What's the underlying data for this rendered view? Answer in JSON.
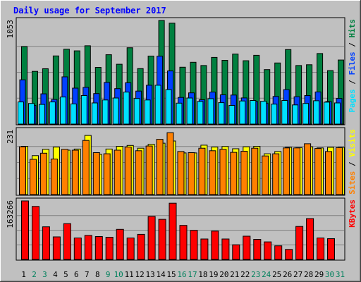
{
  "chart_data": {
    "type": "bar",
    "title": "Daily usage for September 2017",
    "categories": [
      "1",
      "2",
      "3",
      "4",
      "5",
      "6",
      "7",
      "8",
      "9",
      "10",
      "11",
      "12",
      "13",
      "14",
      "15",
      "16",
      "17",
      "18",
      "19",
      "20",
      "21",
      "22",
      "23",
      "24",
      "25",
      "26",
      "27",
      "28",
      "29",
      "30",
      "31"
    ],
    "weekend_days": [
      "2",
      "3",
      "9",
      "10",
      "16",
      "17",
      "23",
      "24",
      "30",
      "31"
    ],
    "panels": [
      {
        "id": "hits-files-pages",
        "ymax": 1053,
        "ymax_label": "1053",
        "axis_label": "Pages / Files / Hits",
        "series": [
          {
            "name": "Hits",
            "color": "#008040",
            "values": [
              788,
              536,
              562,
              693,
              761,
              744,
              796,
              577,
              705,
              608,
              776,
              564,
              691,
              1053,
              1025,
              578,
              628,
              595,
              678,
              648,
              711,
              644,
              699,
              554,
              621,
              757,
              595,
              603,
              717,
              544,
              651
            ]
          },
          {
            "name": "Files",
            "color": "#0040ff",
            "values": [
              450,
              190,
              307,
              250,
              480,
              365,
              373,
              310,
              423,
              360,
              420,
              335,
              395,
              690,
              540,
              271,
              317,
              247,
              325,
              297,
              295,
              266,
              230,
              212,
              281,
              350,
              278,
              290,
              327,
              229,
              261
            ]
          },
          {
            "name": "Pages",
            "color": "#00e0ff",
            "values": [
              225,
              210,
              200,
              225,
              275,
              205,
              290,
              215,
              245,
              265,
              325,
              260,
              245,
              395,
              350,
              213,
              265,
              230,
              258,
              218,
              190,
              235,
              240,
              233,
              203,
              240,
              195,
              210,
              237,
              223,
              215
            ]
          }
        ]
      },
      {
        "id": "visits-sites",
        "ymax": 231,
        "ymax_label": "231",
        "axis_label": "Sites / Visits",
        "series": [
          {
            "name": "Visits",
            "color": "#ffff00",
            "values": [
              174,
              140,
              163,
              171,
              160,
              164,
              213,
              145,
              164,
              174,
              177,
              167,
              181,
              185,
              193,
              150,
              150,
              178,
              171,
              173,
              165,
              172,
              174,
              147,
              155,
              170,
              169,
              172,
              168,
              170,
              170
            ]
          },
          {
            "name": "Sites",
            "color": "#ff8000",
            "values": [
              172,
              127,
              149,
              128,
              163,
              160,
              195,
              151,
              147,
              160,
              171,
              158,
              175,
              199,
              223,
              155,
              151,
              167,
              158,
              163,
              152,
              156,
              167,
              139,
              147,
              168,
              168,
              183,
              166,
              155,
              169
            ]
          }
        ]
      },
      {
        "id": "kbytes",
        "ymax": 163266,
        "ymax_label": "163266",
        "axis_label": "KBytes",
        "series": [
          {
            "name": "KBytes",
            "color": "#ff0000",
            "values": [
              163266,
              148000,
              91000,
              63000,
              100000,
              60000,
              67000,
              64000,
              62000,
              84000,
              60000,
              70000,
              120000,
              112000,
              157000,
              95000,
              81000,
              57000,
              79000,
              57000,
              41000,
              65000,
              56000,
              49000,
              38000,
              28000,
              92000,
              114000,
              60000,
              58000,
              0
            ]
          }
        ]
      }
    ],
    "colors": {
      "background": "#c0c0c0",
      "plot_background": "#c0c0c0",
      "title": "#0000ff",
      "grid": "#808080",
      "weekday_label": "#000000",
      "weekend_label": "#00805c"
    }
  }
}
